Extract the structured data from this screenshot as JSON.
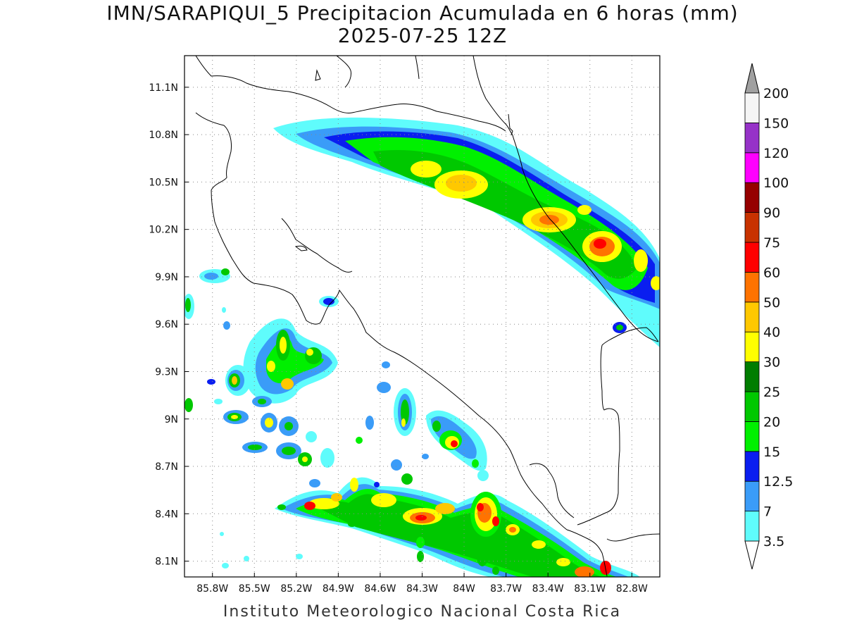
{
  "title": {
    "line1": "IMN/SARAPIQUI_5 Precipitacion Acumulada en 6 horas (mm)",
    "line2": "2025-07-25 12Z"
  },
  "credit": "Instituto Meteorologico Nacional Costa Rica",
  "map": {
    "lon_range": [
      -86.0,
      -82.6
    ],
    "lat_range": [
      8.0,
      11.3
    ],
    "lon_ticks": [
      {
        "value": -85.8,
        "label": "85.8W"
      },
      {
        "value": -85.5,
        "label": "85.5W"
      },
      {
        "value": -85.2,
        "label": "85.2W"
      },
      {
        "value": -84.9,
        "label": "84.9W"
      },
      {
        "value": -84.6,
        "label": "84.6W"
      },
      {
        "value": -84.3,
        "label": "84.3W"
      },
      {
        "value": -84.0,
        "label": "84W"
      },
      {
        "value": -83.7,
        "label": "83.7W"
      },
      {
        "value": -83.4,
        "label": "83.4W"
      },
      {
        "value": -83.1,
        "label": "83.1W"
      },
      {
        "value": -82.8,
        "label": "82.8W"
      }
    ],
    "lat_ticks": [
      {
        "value": 8.1,
        "label": "8.1N"
      },
      {
        "value": 8.4,
        "label": "8.4N"
      },
      {
        "value": 8.7,
        "label": "8.7N"
      },
      {
        "value": 9.0,
        "label": "9N"
      },
      {
        "value": 9.3,
        "label": "9.3N"
      },
      {
        "value": 9.6,
        "label": "9.6N"
      },
      {
        "value": 9.9,
        "label": "9.9N"
      },
      {
        "value": 10.2,
        "label": "10.2N"
      },
      {
        "value": 10.5,
        "label": "10.5N"
      },
      {
        "value": 10.8,
        "label": "10.8N"
      },
      {
        "value": 11.1,
        "label": "11.1N"
      }
    ],
    "grid": true
  },
  "colorbar": {
    "levels": [
      {
        "label": "3.5",
        "color": "#5ffcfc"
      },
      {
        "label": "7",
        "color": "#3a9cf8"
      },
      {
        "label": "12.5",
        "color": "#0a1ef0"
      },
      {
        "label": "15",
        "color": "#00f000"
      },
      {
        "label": "20",
        "color": "#00c800"
      },
      {
        "label": "25",
        "color": "#007d00"
      },
      {
        "label": "30",
        "color": "#ffff00"
      },
      {
        "label": "40",
        "color": "#ffc800"
      },
      {
        "label": "50",
        "color": "#ff7300"
      },
      {
        "label": "60",
        "color": "#ff0000"
      },
      {
        "label": "75",
        "color": "#c83200"
      },
      {
        "label": "90",
        "color": "#960000"
      },
      {
        "label": "100",
        "color": "#ff00ff"
      },
      {
        "label": "120",
        "color": "#9632c8"
      },
      {
        "label": "150",
        "color": "#f5f5f5"
      },
      {
        "label": "200",
        "color": "#a0a0a0"
      }
    ]
  }
}
